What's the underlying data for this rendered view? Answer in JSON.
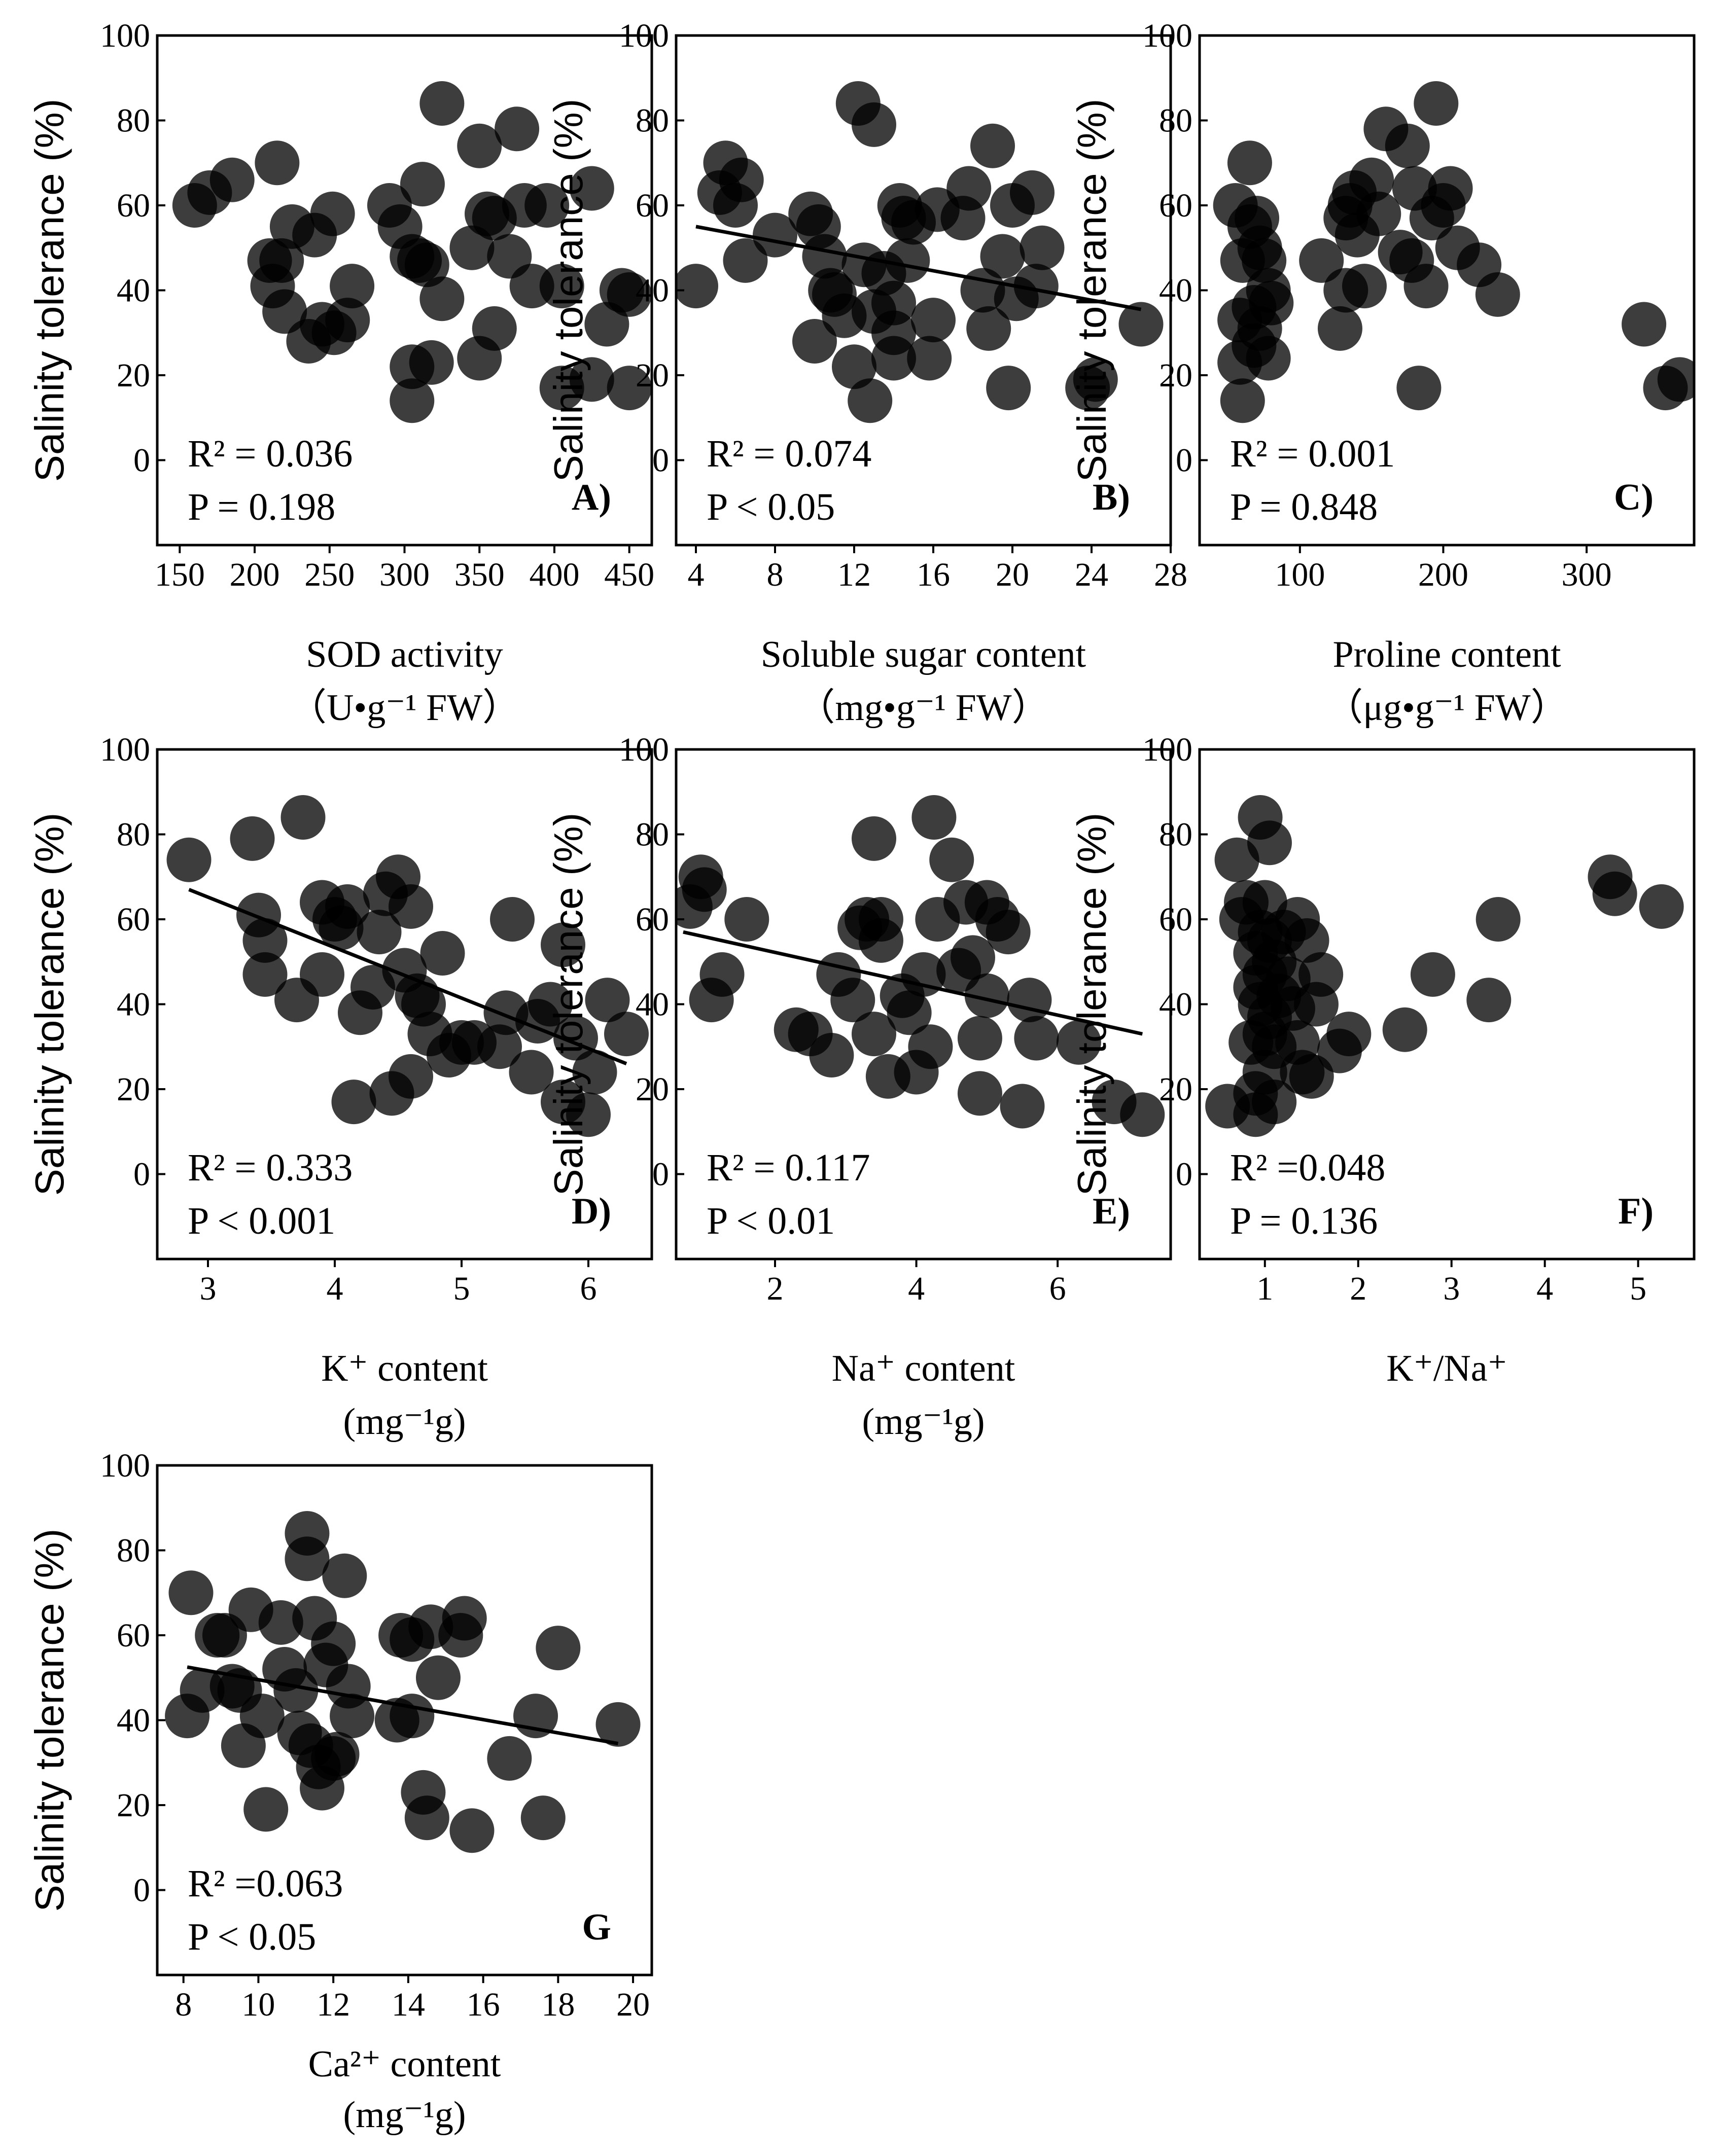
{
  "ylabel": "Salinity tolerance (%)",
  "chart_data": [
    {
      "id": "A",
      "type": "scatter",
      "tag": "A)",
      "xlabel_lines": [
        "SOD activity",
        "（U•g⁻¹ FW）"
      ],
      "ylabel": "Salinity tolerance (%)",
      "xlim": [
        135,
        465
      ],
      "ylim": [
        -20,
        100
      ],
      "xticks": [
        150,
        200,
        250,
        300,
        350,
        400,
        450
      ],
      "yticks": [
        0,
        20,
        40,
        60,
        80,
        100
      ],
      "stats": [
        "R² = 0.036",
        "P = 0.198"
      ],
      "trend": null,
      "points": [
        [
          160,
          60
        ],
        [
          170,
          63
        ],
        [
          185,
          66
        ],
        [
          215,
          70
        ],
        [
          210,
          47
        ],
        [
          218,
          47
        ],
        [
          212,
          41
        ],
        [
          220,
          35
        ],
        [
          225,
          55
        ],
        [
          240,
          53
        ],
        [
          245,
          32
        ],
        [
          236,
          28
        ],
        [
          252,
          58
        ],
        [
          253,
          30
        ],
        [
          262,
          33
        ],
        [
          265,
          41
        ],
        [
          290,
          60
        ],
        [
          297,
          55
        ],
        [
          305,
          48
        ],
        [
          310,
          47
        ],
        [
          305,
          22
        ],
        [
          305,
          14
        ],
        [
          312,
          65
        ],
        [
          315,
          46
        ],
        [
          318,
          23
        ],
        [
          325,
          38
        ],
        [
          325,
          84
        ],
        [
          345,
          50
        ],
        [
          350,
          74
        ],
        [
          355,
          58
        ],
        [
          360,
          57
        ],
        [
          360,
          31
        ],
        [
          350,
          24
        ],
        [
          370,
          48
        ],
        [
          375,
          78
        ],
        [
          380,
          60
        ],
        [
          385,
          41
        ],
        [
          395,
          60
        ],
        [
          405,
          41
        ],
        [
          405,
          17
        ],
        [
          425,
          64
        ],
        [
          425,
          19
        ],
        [
          435,
          32
        ],
        [
          445,
          40
        ],
        [
          450,
          39
        ],
        [
          450,
          17
        ]
      ]
    },
    {
      "id": "B",
      "type": "scatter",
      "tag": "B)",
      "xlabel_lines": [
        "Soluble sugar content",
        "（mg•g⁻¹ FW）"
      ],
      "ylabel": "Salinity tolerance (%)",
      "xlim": [
        3,
        28
      ],
      "ylim": [
        -20,
        100
      ],
      "xticks": [
        4,
        8,
        12,
        16,
        20,
        24,
        28
      ],
      "yticks": [
        0,
        20,
        40,
        60,
        80,
        100
      ],
      "stats": [
        "R² = 0.074",
        "P < 0.05"
      ],
      "trend": [
        [
          4,
          55
        ],
        [
          26.5,
          35.5
        ]
      ],
      "points": [
        [
          4,
          41
        ],
        [
          5.2,
          63
        ],
        [
          5.5,
          70
        ],
        [
          6,
          60
        ],
        [
          6.3,
          66
        ],
        [
          6.5,
          47
        ],
        [
          8,
          53
        ],
        [
          9.8,
          58
        ],
        [
          10,
          28
        ],
        [
          10.2,
          55
        ],
        [
          10.5,
          48
        ],
        [
          10.8,
          40
        ],
        [
          11,
          39
        ],
        [
          11.5,
          34
        ],
        [
          12,
          22
        ],
        [
          12.2,
          84
        ],
        [
          12.5,
          46
        ],
        [
          12.8,
          14
        ],
        [
          13,
          79
        ],
        [
          13,
          35
        ],
        [
          13.5,
          44
        ],
        [
          14,
          30
        ],
        [
          14,
          24
        ],
        [
          14,
          37
        ],
        [
          14.3,
          60
        ],
        [
          14.5,
          57
        ],
        [
          14.7,
          47
        ],
        [
          15,
          56
        ],
        [
          15.8,
          24
        ],
        [
          16,
          33
        ],
        [
          16.2,
          59
        ],
        [
          17.5,
          57
        ],
        [
          17.8,
          64
        ],
        [
          18.5,
          40
        ],
        [
          18.8,
          31
        ],
        [
          19,
          74
        ],
        [
          19.5,
          48
        ],
        [
          19.8,
          17
        ],
        [
          20,
          60
        ],
        [
          20.2,
          38
        ],
        [
          21,
          63
        ],
        [
          21.2,
          41
        ],
        [
          21.5,
          50
        ],
        [
          23.8,
          17
        ],
        [
          24.2,
          19
        ],
        [
          26.5,
          32
        ]
      ]
    },
    {
      "id": "C",
      "type": "scatter",
      "tag": "C)",
      "xlabel_lines": [
        "Proline content",
        "（μg•g⁻¹ FW）"
      ],
      "ylabel": "Salinity tolerance (%)",
      "xlim": [
        30,
        375
      ],
      "ylim": [
        -20,
        100
      ],
      "xticks": [
        100,
        200,
        300
      ],
      "yticks": [
        0,
        20,
        40,
        60,
        80,
        100
      ],
      "stats": [
        "R² = 0.001",
        "P = 0.848"
      ],
      "trend": null,
      "points": [
        [
          55,
          60
        ],
        [
          58,
          33
        ],
        [
          58,
          23
        ],
        [
          60,
          14
        ],
        [
          60,
          47
        ],
        [
          65,
          70
        ],
        [
          65,
          55
        ],
        [
          68,
          36
        ],
        [
          68,
          27
        ],
        [
          70,
          57
        ],
        [
          72,
          50
        ],
        [
          72,
          31
        ],
        [
          75,
          47
        ],
        [
          78,
          40
        ],
        [
          78,
          24
        ],
        [
          80,
          37
        ],
        [
          115,
          47
        ],
        [
          128,
          31
        ],
        [
          132,
          57
        ],
        [
          132,
          40
        ],
        [
          135,
          60
        ],
        [
          138,
          63
        ],
        [
          140,
          53
        ],
        [
          145,
          41
        ],
        [
          150,
          66
        ],
        [
          155,
          58
        ],
        [
          160,
          78
        ],
        [
          170,
          49
        ],
        [
          175,
          74
        ],
        [
          178,
          47
        ],
        [
          180,
          64
        ],
        [
          183,
          17
        ],
        [
          188,
          41
        ],
        [
          192,
          57
        ],
        [
          195,
          84
        ],
        [
          200,
          60
        ],
        [
          205,
          64
        ],
        [
          210,
          50
        ],
        [
          225,
          46
        ],
        [
          238,
          39
        ],
        [
          340,
          32
        ],
        [
          355,
          17
        ],
        [
          365,
          19
        ]
      ]
    },
    {
      "id": "D",
      "type": "scatter",
      "tag": "D)",
      "xlabel_lines": [
        "K⁺ content",
        "(mg⁻¹g)"
      ],
      "ylabel": "Salinity tolerance (%)",
      "xlim": [
        2.6,
        6.5
      ],
      "ylim": [
        -20,
        100
      ],
      "xticks": [
        3,
        4,
        5,
        6
      ],
      "yticks": [
        0,
        20,
        40,
        60,
        80,
        100
      ],
      "stats": [
        "R² = 0.333",
        "P < 0.001"
      ],
      "trend": [
        [
          2.85,
          67
        ],
        [
          6.3,
          26
        ]
      ],
      "points": [
        [
          2.85,
          74
        ],
        [
          3.35,
          79
        ],
        [
          3.4,
          61
        ],
        [
          3.45,
          55
        ],
        [
          3.45,
          47
        ],
        [
          3.7,
          41
        ],
        [
          3.75,
          84
        ],
        [
          3.9,
          64
        ],
        [
          3.9,
          47
        ],
        [
          4,
          60
        ],
        [
          4.05,
          58
        ],
        [
          4.1,
          63
        ],
        [
          4.15,
          17
        ],
        [
          4.2,
          38
        ],
        [
          4.3,
          44
        ],
        [
          4.35,
          57
        ],
        [
          4.4,
          66
        ],
        [
          4.45,
          19
        ],
        [
          4.5,
          70
        ],
        [
          4.55,
          48
        ],
        [
          4.6,
          63
        ],
        [
          4.6,
          23
        ],
        [
          4.65,
          42
        ],
        [
          4.7,
          40
        ],
        [
          4.75,
          33
        ],
        [
          4.85,
          52
        ],
        [
          4.9,
          28
        ],
        [
          5,
          31
        ],
        [
          5.1,
          31
        ],
        [
          5.3,
          30
        ],
        [
          5.35,
          38
        ],
        [
          5.4,
          60
        ],
        [
          5.55,
          24
        ],
        [
          5.6,
          36
        ],
        [
          5.7,
          40
        ],
        [
          5.8,
          54
        ],
        [
          5.8,
          17
        ],
        [
          5.9,
          32
        ],
        [
          6,
          14
        ],
        [
          6.05,
          24
        ],
        [
          6.15,
          41
        ],
        [
          6.3,
          33
        ]
      ]
    },
    {
      "id": "E",
      "type": "scatter",
      "tag": "E)",
      "xlabel_lines": [
        "Na⁺ content",
        "(mg⁻¹g)"
      ],
      "ylabel": "Salinity tolerance (%)",
      "xlim": [
        0.6,
        7.6
      ],
      "ylim": [
        -20,
        100
      ],
      "xticks": [
        2,
        4,
        6
      ],
      "yticks": [
        0,
        20,
        40,
        60,
        80,
        100
      ],
      "stats": [
        "R² = 0.117",
        "P < 0.01"
      ],
      "trend": [
        [
          0.7,
          57
        ],
        [
          7.2,
          33
        ]
      ],
      "points": [
        [
          0.8,
          63
        ],
        [
          0.95,
          70
        ],
        [
          1,
          67
        ],
        [
          1.1,
          41
        ],
        [
          1.25,
          47
        ],
        [
          1.6,
          60
        ],
        [
          2.3,
          34
        ],
        [
          2.5,
          33
        ],
        [
          2.8,
          28
        ],
        [
          2.9,
          47
        ],
        [
          3.1,
          41
        ],
        [
          3.2,
          58
        ],
        [
          3.3,
          60
        ],
        [
          3.4,
          33
        ],
        [
          3.4,
          79
        ],
        [
          3.5,
          60
        ],
        [
          3.5,
          55
        ],
        [
          3.6,
          23
        ],
        [
          3.8,
          42
        ],
        [
          3.9,
          38
        ],
        [
          4,
          24
        ],
        [
          4.1,
          47
        ],
        [
          4.2,
          30
        ],
        [
          4.25,
          84
        ],
        [
          4.3,
          60
        ],
        [
          4.5,
          74
        ],
        [
          4.6,
          48
        ],
        [
          4.7,
          64
        ],
        [
          4.8,
          51
        ],
        [
          4.9,
          19
        ],
        [
          4.9,
          32
        ],
        [
          5,
          64
        ],
        [
          5,
          42
        ],
        [
          5.15,
          60
        ],
        [
          5.3,
          57
        ],
        [
          5.5,
          16
        ],
        [
          5.6,
          41
        ],
        [
          5.7,
          32
        ],
        [
          6.3,
          31
        ],
        [
          6.8,
          17
        ],
        [
          7.2,
          14
        ]
      ]
    },
    {
      "id": "F",
      "type": "scatter",
      "tag": "F)",
      "xlabel_lines": [
        "K⁺/Na⁺"
      ],
      "ylabel": "Salinity tolerance (%)",
      "xlim": [
        0.3,
        5.6
      ],
      "ylim": [
        -20,
        100
      ],
      "xticks": [
        1,
        2,
        3,
        4,
        5
      ],
      "yticks": [
        0,
        20,
        40,
        60,
        80,
        100
      ],
      "stats": [
        "R² =0.048",
        "P = 0.136"
      ],
      "trend": null,
      "points": [
        [
          0.6,
          16
        ],
        [
          0.7,
          74
        ],
        [
          0.75,
          60
        ],
        [
          0.8,
          64
        ],
        [
          0.85,
          31
        ],
        [
          0.9,
          52
        ],
        [
          0.9,
          19
        ],
        [
          0.9,
          44
        ],
        [
          0.9,
          14
        ],
        [
          0.95,
          84
        ],
        [
          0.95,
          57
        ],
        [
          0.95,
          40
        ],
        [
          1,
          64
        ],
        [
          1,
          47
        ],
        [
          1,
          33
        ],
        [
          1,
          24
        ],
        [
          1.05,
          78
        ],
        [
          1.05,
          55
        ],
        [
          1.05,
          37
        ],
        [
          1.1,
          30
        ],
        [
          1.1,
          17
        ],
        [
          1.1,
          50
        ],
        [
          1.15,
          42
        ],
        [
          1.2,
          57
        ],
        [
          1.25,
          46
        ],
        [
          1.3,
          39
        ],
        [
          1.35,
          60
        ],
        [
          1.35,
          31
        ],
        [
          1.4,
          24
        ],
        [
          1.45,
          55
        ],
        [
          1.5,
          23
        ],
        [
          1.55,
          40
        ],
        [
          1.6,
          47
        ],
        [
          1.8,
          29
        ],
        [
          1.9,
          33
        ],
        [
          2.5,
          34
        ],
        [
          2.8,
          47
        ],
        [
          3.4,
          41
        ],
        [
          3.5,
          60
        ],
        [
          4.7,
          70
        ],
        [
          4.75,
          66
        ],
        [
          5.25,
          63
        ]
      ]
    },
    {
      "id": "G",
      "type": "scatter",
      "tag": "G",
      "xlabel_lines": [
        "Ca²⁺ content",
        "(mg⁻¹g)"
      ],
      "ylabel": "Salinity tolerance (%)",
      "xlim": [
        7.3,
        20.5
      ],
      "ylim": [
        -20,
        100
      ],
      "xticks": [
        8,
        10,
        12,
        14,
        16,
        18,
        20
      ],
      "yticks": [
        0,
        20,
        40,
        60,
        80,
        100
      ],
      "stats": [
        "R² =0.063",
        "P < 0.05"
      ],
      "trend": [
        [
          8.1,
          52.5
        ],
        [
          19.6,
          34.5
        ]
      ],
      "points": [
        [
          8.1,
          41
        ],
        [
          8.2,
          70
        ],
        [
          8.5,
          47
        ],
        [
          8.9,
          60
        ],
        [
          9.1,
          60
        ],
        [
          9.3,
          48
        ],
        [
          9.5,
          47
        ],
        [
          9.6,
          34
        ],
        [
          9.8,
          66
        ],
        [
          10.1,
          41
        ],
        [
          10.2,
          19
        ],
        [
          10.6,
          63
        ],
        [
          10.7,
          52
        ],
        [
          11,
          47
        ],
        [
          11.1,
          37
        ],
        [
          11.3,
          78
        ],
        [
          11.3,
          84
        ],
        [
          11.4,
          34
        ],
        [
          11.5,
          64
        ],
        [
          11.6,
          29
        ],
        [
          11.7,
          24
        ],
        [
          11.8,
          53
        ],
        [
          12,
          58
        ],
        [
          12,
          31
        ],
        [
          12.1,
          32
        ],
        [
          12.3,
          74
        ],
        [
          12.4,
          48
        ],
        [
          12.5,
          41
        ],
        [
          13.7,
          40
        ],
        [
          13.8,
          60
        ],
        [
          14.1,
          41
        ],
        [
          14.1,
          59
        ],
        [
          14.4,
          23
        ],
        [
          14.5,
          17
        ],
        [
          14.6,
          62
        ],
        [
          14.8,
          50
        ],
        [
          15.4,
          60
        ],
        [
          15.5,
          64
        ],
        [
          15.7,
          14
        ],
        [
          16.7,
          31
        ],
        [
          17.4,
          41
        ],
        [
          17.6,
          17
        ],
        [
          18,
          57
        ],
        [
          19.6,
          39
        ]
      ]
    }
  ]
}
